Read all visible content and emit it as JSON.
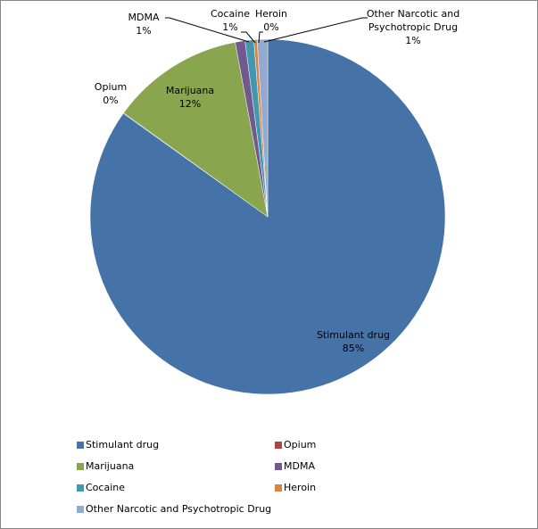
{
  "chart_data": {
    "type": "pie",
    "title": "",
    "slices": [
      {
        "label": "Stimulant drug",
        "value": 85.4,
        "display": "85%",
        "color": "#4572A7"
      },
      {
        "label": "Opium",
        "value": 0.05,
        "display": "0%",
        "color": "#AA4643"
      },
      {
        "label": "Marijuana",
        "value": 12.2,
        "display": "12%",
        "color": "#89A54E"
      },
      {
        "label": "MDMA",
        "value": 0.9,
        "display": "1%",
        "color": "#71588F"
      },
      {
        "label": "Cocaine",
        "value": 0.8,
        "display": "1%",
        "color": "#4198AF"
      },
      {
        "label": "Heroin",
        "value": 0.3,
        "display": "0%",
        "color": "#DB843D"
      },
      {
        "label": "Other Narcotic and Psychotropic Drug",
        "value": 0.95,
        "display": "1%",
        "color": "#93A9CF"
      }
    ],
    "legend_position": "bottom",
    "data_labels": true
  },
  "labels": {
    "stimulant": {
      "name": "Stimulant drug",
      "pct": "85%"
    },
    "opium": {
      "name": "Opium",
      "pct": "0%"
    },
    "marijuana": {
      "name": "Marijuana",
      "pct": "12%"
    },
    "mdma": {
      "name": "MDMA",
      "pct": "1%"
    },
    "cocaine": {
      "name": "Cocaine",
      "pct": "1%"
    },
    "heroin": {
      "name": "Heroin",
      "pct": "0%"
    },
    "other": {
      "name1": "Other Narcotic and",
      "name2": "Psychotropic Drug",
      "pct": "1%"
    }
  },
  "legend": [
    {
      "label": "Stimulant drug",
      "color": "#4572A7"
    },
    {
      "label": "Opium",
      "color": "#AA4643"
    },
    {
      "label": "Marijuana",
      "color": "#89A54E"
    },
    {
      "label": "MDMA",
      "color": "#71588F"
    },
    {
      "label": "Cocaine",
      "color": "#4198AF"
    },
    {
      "label": "Heroin",
      "color": "#DB843D"
    },
    {
      "label": "Other Narcotic and Psychotropic Drug",
      "color": "#93A9CF"
    }
  ]
}
